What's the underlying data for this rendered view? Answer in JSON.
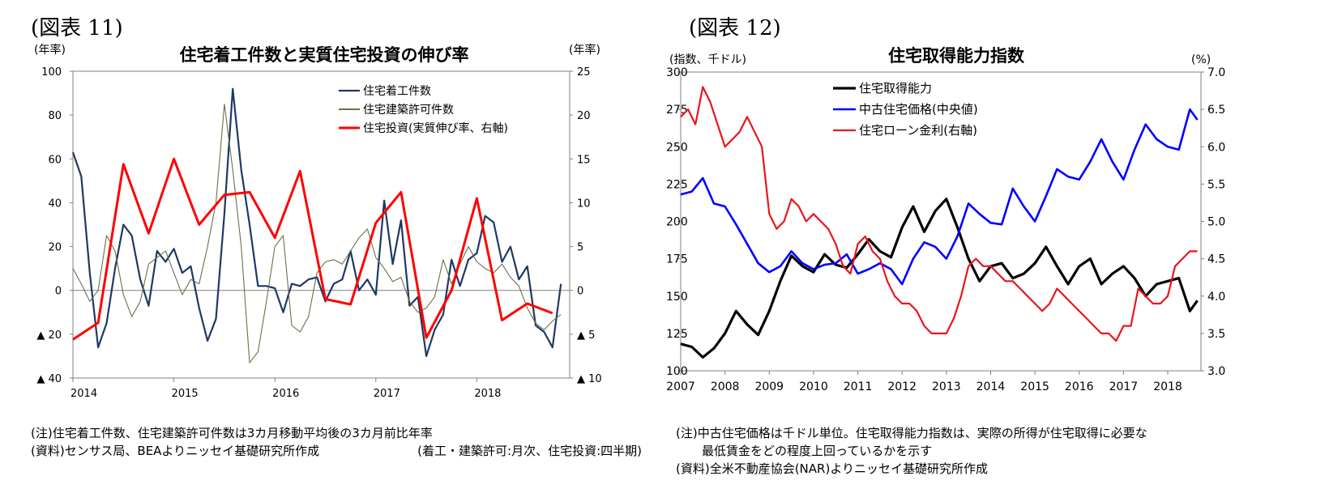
{
  "left": {
    "figure_label": "(図表 11)",
    "note1": "(注)住宅着工件数、住宅建築許可件数は3カ月移動平均後の3カ月前比年率",
    "note2": "(資料)センサス局、BEAよりニッセイ基礎研究所作成",
    "note3": "(着工・建築許可:月次、住宅投資:四半期)"
  },
  "right": {
    "figure_label": "(図表 12)",
    "note1": "(注)中古住宅価格は千ドル単位。住宅取得能力指数は、実際の所得が住宅取得に必要な",
    "note2": "最低賃金をどの程度上回っているかを示す",
    "note3": "(資料)全米不動産協会(NAR)よりニッセイ基礎研究所作成"
  },
  "chart_data": [
    {
      "type": "line",
      "title": "住宅着工件数と実質住宅投資の伸び率",
      "ylabel_left": "(年率)",
      "ylabel_right": "(年率)",
      "ylim_left": [
        -40,
        100
      ],
      "ylim_right": [
        -10,
        25
      ],
      "ytick_labels_left": [
        "▲ 40",
        "▲ 20",
        "0",
        "20",
        "40",
        "60",
        "80",
        "100"
      ],
      "ytick_values_left": [
        -40,
        -20,
        0,
        20,
        40,
        60,
        80,
        100
      ],
      "ytick_labels_right": [
        "▲ 10",
        "▲ 5",
        "0",
        "5",
        "10",
        "15",
        "20",
        "25"
      ],
      "ytick_values_right": [
        -10,
        -5,
        0,
        5,
        10,
        15,
        20,
        25
      ],
      "x_labels": [
        "2014",
        "2015",
        "2016",
        "2017",
        "2018"
      ],
      "x_label_positions": [
        2014,
        2015,
        2016,
        2017,
        2018
      ],
      "xlim": [
        2014,
        2018.92
      ],
      "legend_position": "top-right",
      "series": [
        {
          "name": "住宅着工件数",
          "axis": "left",
          "color": "#1f3864",
          "width": 2.2,
          "x": [
            2014.0,
            2014.083,
            2014.167,
            2014.25,
            2014.333,
            2014.417,
            2014.5,
            2014.583,
            2014.667,
            2014.75,
            2014.833,
            2014.917,
            2015.0,
            2015.083,
            2015.167,
            2015.25,
            2015.333,
            2015.417,
            2015.5,
            2015.583,
            2015.667,
            2015.75,
            2015.833,
            2015.917,
            2016.0,
            2016.083,
            2016.167,
            2016.25,
            2016.333,
            2016.417,
            2016.5,
            2016.583,
            2016.667,
            2016.75,
            2016.833,
            2016.917,
            2017.0,
            2017.083,
            2017.167,
            2017.25,
            2017.333,
            2017.417,
            2017.5,
            2017.583,
            2017.667,
            2017.75,
            2017.833,
            2017.917,
            2018.0,
            2018.083,
            2018.167,
            2018.25,
            2018.333,
            2018.417,
            2018.5,
            2018.583,
            2018.667,
            2018.75,
            2018.833
          ],
          "values": [
            63,
            52,
            8,
            -26,
            -15,
            10,
            30,
            25,
            5,
            -7,
            18,
            13,
            19,
            8,
            11,
            -8,
            -23,
            -13,
            35,
            92,
            55,
            30,
            2,
            2,
            1,
            -10,
            3,
            2,
            5,
            6,
            -5,
            3,
            5,
            18,
            0,
            5,
            -2,
            41,
            12,
            32,
            -7,
            -3,
            -30,
            -18,
            -11,
            14,
            2,
            14,
            17,
            34,
            31,
            13,
            20,
            5,
            11,
            -16,
            -19,
            -26,
            3
          ]
        },
        {
          "name": "住宅建築許可件数",
          "axis": "left",
          "color": "#6b7048",
          "width": 1.1,
          "x": [
            2014.0,
            2014.083,
            2014.167,
            2014.25,
            2014.333,
            2014.417,
            2014.5,
            2014.583,
            2014.667,
            2014.75,
            2014.833,
            2014.917,
            2015.0,
            2015.083,
            2015.167,
            2015.25,
            2015.333,
            2015.417,
            2015.5,
            2015.583,
            2015.667,
            2015.75,
            2015.833,
            2015.917,
            2016.0,
            2016.083,
            2016.167,
            2016.25,
            2016.333,
            2016.417,
            2016.5,
            2016.583,
            2016.667,
            2016.75,
            2016.833,
            2016.917,
            2017.0,
            2017.083,
            2017.167,
            2017.25,
            2017.333,
            2017.417,
            2017.5,
            2017.583,
            2017.667,
            2017.75,
            2017.833,
            2017.917,
            2018.0,
            2018.083,
            2018.167,
            2018.25,
            2018.333,
            2018.417,
            2018.5,
            2018.583,
            2018.667,
            2018.75,
            2018.833
          ],
          "values": [
            10,
            3,
            -5,
            0,
            25,
            18,
            -2,
            -12,
            -5,
            12,
            15,
            18,
            8,
            -2,
            5,
            3,
            20,
            40,
            85,
            55,
            20,
            -33,
            -28,
            -5,
            20,
            25,
            -16,
            -19,
            -12,
            8,
            13,
            14,
            12,
            18,
            24,
            28,
            15,
            10,
            4,
            6,
            -5,
            -10,
            -8,
            -3,
            14,
            3,
            12,
            20,
            13,
            10,
            8,
            12,
            6,
            2,
            -8,
            -15,
            -18,
            -14,
            -11
          ]
        },
        {
          "name": "住宅投資(実質伸び率、右軸)",
          "axis": "right",
          "color": "#ff0000",
          "width": 3,
          "x": [
            2014.0,
            2014.25,
            2014.5,
            2014.75,
            2015.0,
            2015.25,
            2015.5,
            2015.75,
            2016.0,
            2016.25,
            2016.5,
            2016.75,
            2017.0,
            2017.25,
            2017.5,
            2017.75,
            2018.0,
            2018.25,
            2018.5,
            2018.75
          ],
          "values": [
            -5.6,
            -3.7,
            14.4,
            6.5,
            15.0,
            7.5,
            10.9,
            11.2,
            6.0,
            13.6,
            -1.0,
            -1.6,
            7.7,
            11.2,
            -5.4,
            0.0,
            10.5,
            -3.4,
            -1.5,
            -2.6
          ]
        }
      ]
    },
    {
      "type": "line",
      "title": "住宅取得能力指数",
      "ylabel_left": "(指数、千ドル)",
      "ylabel_right": "(%)",
      "ylim_left": [
        100,
        300
      ],
      "ylim_right": [
        3.0,
        7.0
      ],
      "ytick_labels_left": [
        "100",
        "125",
        "150",
        "175",
        "200",
        "225",
        "250",
        "275",
        "300"
      ],
      "ytick_values_left": [
        100,
        125,
        150,
        175,
        200,
        225,
        250,
        275,
        300
      ],
      "ytick_labels_right": [
        "3.0",
        "3.5",
        "4.0",
        "4.5",
        "5.0",
        "5.5",
        "6.0",
        "6.5",
        "7.0"
      ],
      "ytick_values_right": [
        3.0,
        3.5,
        4.0,
        4.5,
        5.0,
        5.5,
        6.0,
        6.5,
        7.0
      ],
      "x_labels": [
        "2007",
        "2008",
        "2009",
        "2010",
        "2011",
        "2012",
        "2013",
        "2014",
        "2015",
        "2016",
        "2017",
        "2018"
      ],
      "x_label_positions": [
        2007,
        2008,
        2009,
        2010,
        2011,
        2012,
        2013,
        2014,
        2015,
        2016,
        2017,
        2018
      ],
      "xlim": [
        2007,
        2018.75
      ],
      "legend_position": "top-left",
      "series": [
        {
          "name": "住宅取得能力",
          "axis": "left",
          "color": "#000000",
          "width": 3.2,
          "x": [
            2007.0,
            2007.25,
            2007.5,
            2007.75,
            2008.0,
            2008.25,
            2008.5,
            2008.75,
            2009.0,
            2009.25,
            2009.5,
            2009.75,
            2010.0,
            2010.25,
            2010.5,
            2010.75,
            2011.0,
            2011.25,
            2011.5,
            2011.75,
            2012.0,
            2012.25,
            2012.5,
            2012.75,
            2013.0,
            2013.25,
            2013.5,
            2013.75,
            2014.0,
            2014.25,
            2014.5,
            2014.75,
            2015.0,
            2015.25,
            2015.5,
            2015.75,
            2016.0,
            2016.25,
            2016.5,
            2016.75,
            2017.0,
            2017.25,
            2017.5,
            2017.75,
            2018.0,
            2018.25,
            2018.5,
            2018.67
          ],
          "values": [
            118,
            116,
            109,
            115,
            125,
            140,
            131,
            124,
            140,
            160,
            177,
            170,
            166,
            178,
            171,
            169,
            178,
            188,
            180,
            176,
            196,
            210,
            193,
            207,
            215,
            196,
            175,
            160,
            170,
            172,
            162,
            165,
            172,
            183,
            170,
            158,
            170,
            175,
            158,
            165,
            170,
            162,
            150,
            158,
            160,
            162,
            140,
            147
          ]
        },
        {
          "name": "中古住宅価格(中央値)",
          "axis": "left",
          "color": "#0000ff",
          "width": 2.6,
          "x": [
            2007.0,
            2007.25,
            2007.5,
            2007.75,
            2008.0,
            2008.25,
            2008.5,
            2008.75,
            2009.0,
            2009.25,
            2009.5,
            2009.75,
            2010.0,
            2010.25,
            2010.5,
            2010.75,
            2011.0,
            2011.25,
            2011.5,
            2011.75,
            2012.0,
            2012.25,
            2012.5,
            2012.75,
            2013.0,
            2013.25,
            2013.5,
            2013.75,
            2014.0,
            2014.25,
            2014.5,
            2014.75,
            2015.0,
            2015.25,
            2015.5,
            2015.75,
            2016.0,
            2016.25,
            2016.5,
            2016.75,
            2017.0,
            2017.25,
            2017.5,
            2017.75,
            2018.0,
            2018.25,
            2018.5,
            2018.67
          ],
          "values": [
            218,
            220,
            229,
            212,
            210,
            198,
            185,
            172,
            166,
            170,
            180,
            172,
            168,
            171,
            172,
            178,
            165,
            168,
            172,
            168,
            158,
            175,
            186,
            183,
            175,
            190,
            212,
            205,
            199,
            198,
            222,
            210,
            200,
            217,
            235,
            230,
            228,
            240,
            255,
            240,
            228,
            248,
            265,
            255,
            250,
            248,
            275,
            268
          ]
        },
        {
          "name": "住宅ローン金利(右軸)",
          "axis": "right",
          "color": "#e8161b",
          "width": 2.2,
          "x": [
            2007.0,
            2007.167,
            2007.333,
            2007.5,
            2007.667,
            2007.833,
            2008.0,
            2008.167,
            2008.333,
            2008.5,
            2008.667,
            2008.833,
            2009.0,
            2009.167,
            2009.333,
            2009.5,
            2009.667,
            2009.833,
            2010.0,
            2010.167,
            2010.333,
            2010.5,
            2010.667,
            2010.833,
            2011.0,
            2011.167,
            2011.333,
            2011.5,
            2011.667,
            2011.833,
            2012.0,
            2012.167,
            2012.333,
            2012.5,
            2012.667,
            2012.833,
            2013.0,
            2013.167,
            2013.333,
            2013.5,
            2013.667,
            2013.833,
            2014.0,
            2014.167,
            2014.333,
            2014.5,
            2014.667,
            2014.833,
            2015.0,
            2015.167,
            2015.333,
            2015.5,
            2015.667,
            2015.833,
            2016.0,
            2016.167,
            2016.333,
            2016.5,
            2016.667,
            2016.833,
            2017.0,
            2017.167,
            2017.333,
            2017.5,
            2017.667,
            2017.833,
            2018.0,
            2018.167,
            2018.333,
            2018.5,
            2018.667
          ],
          "values": [
            6.4,
            6.5,
            6.3,
            6.8,
            6.6,
            6.3,
            6.0,
            6.1,
            6.2,
            6.4,
            6.2,
            6.0,
            5.1,
            4.9,
            5.0,
            5.3,
            5.2,
            5.0,
            5.1,
            5.0,
            4.9,
            4.7,
            4.4,
            4.3,
            4.7,
            4.8,
            4.6,
            4.5,
            4.2,
            4.0,
            3.9,
            3.9,
            3.8,
            3.6,
            3.5,
            3.5,
            3.5,
            3.7,
            4.0,
            4.4,
            4.5,
            4.4,
            4.4,
            4.3,
            4.2,
            4.2,
            4.1,
            4.0,
            3.9,
            3.8,
            3.9,
            4.1,
            4.0,
            3.9,
            3.8,
            3.7,
            3.6,
            3.5,
            3.5,
            3.4,
            3.6,
            3.6,
            4.1,
            4.0,
            3.9,
            3.9,
            4.0,
            4.4,
            4.5,
            4.6,
            4.6
          ]
        }
      ]
    }
  ]
}
